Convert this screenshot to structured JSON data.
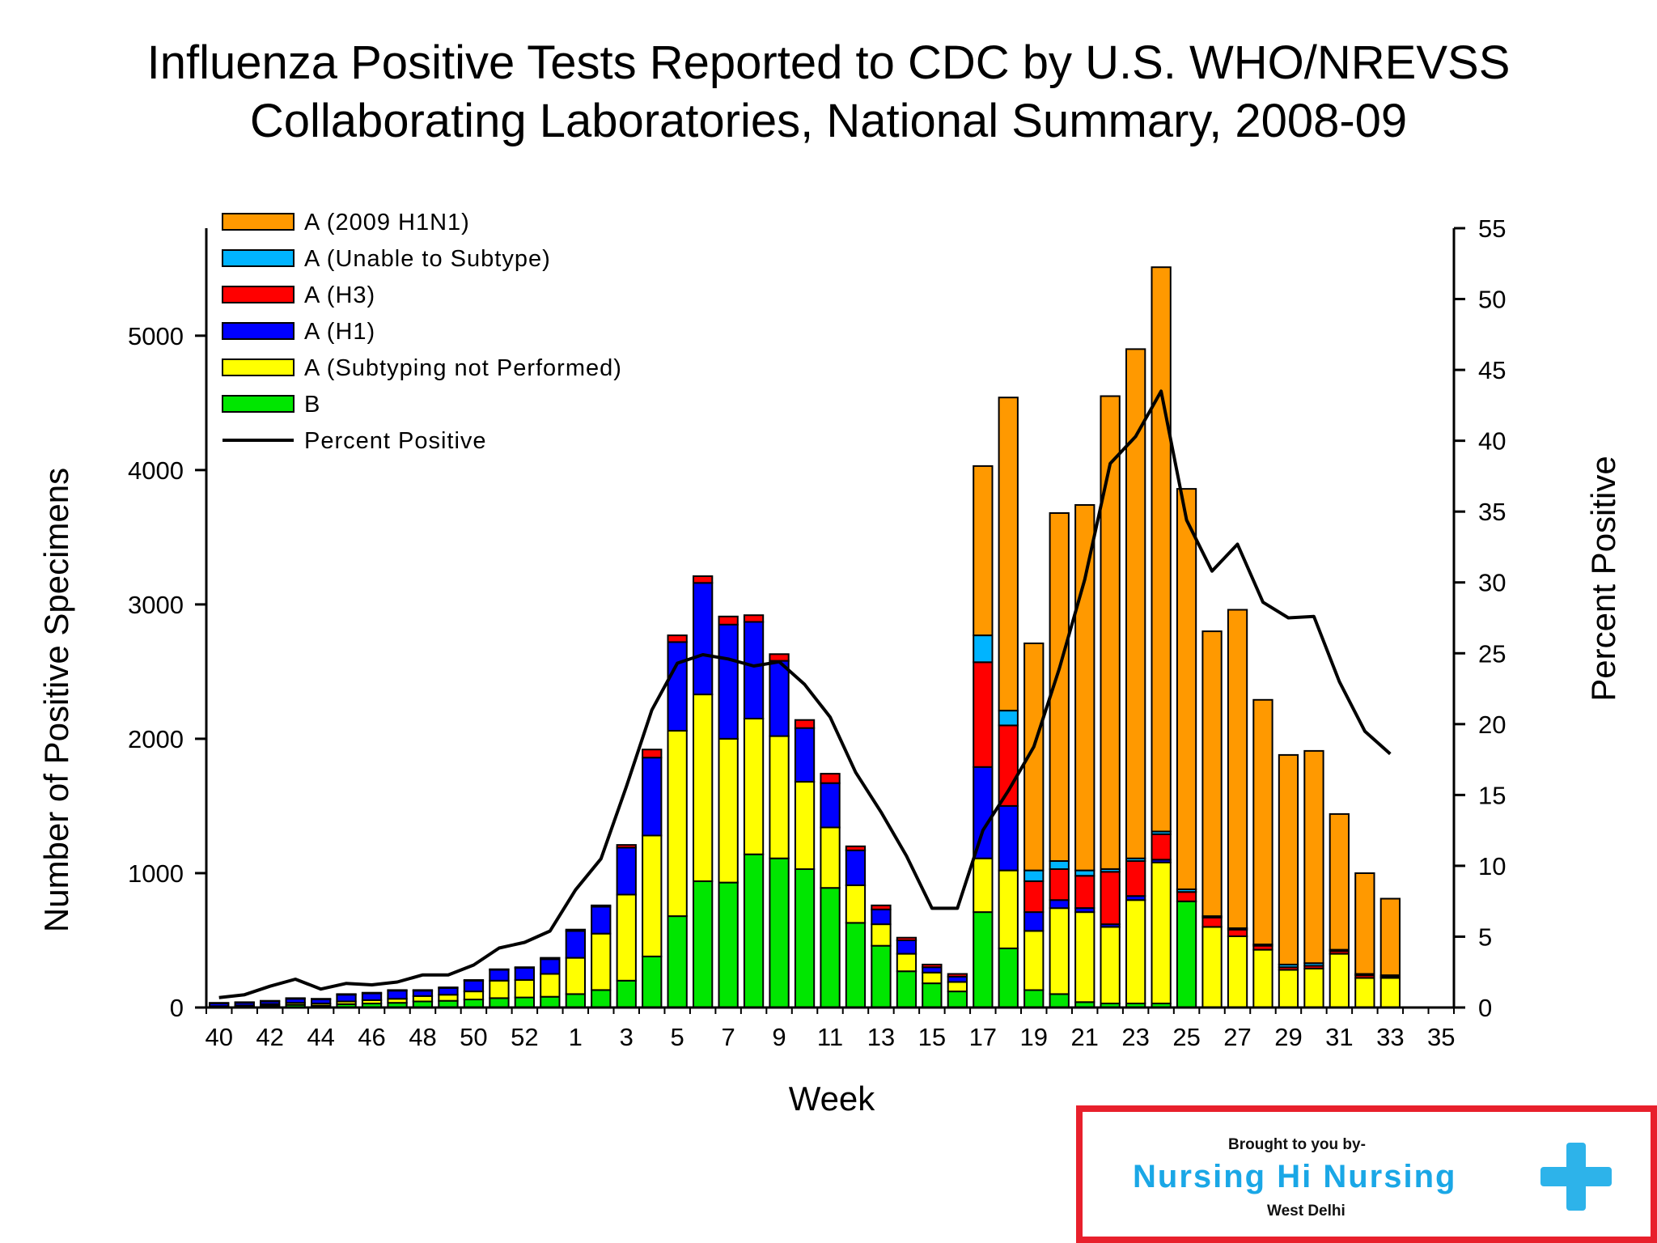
{
  "title_line1": "Influenza Positive Tests Reported to CDC by U.S. WHO/NREVSS",
  "title_line2": "Collaborating Laboratories, National Summary, 2008-09",
  "chart_data": {
    "type": "bar",
    "stacked": true,
    "title": "Influenza Positive Tests Reported to CDC by U.S. WHO/NREVSS Collaborating Laboratories, National Summary, 2008-09",
    "xlabel": "Week",
    "ylabel": "Number of Positive Specimens",
    "y2label": "Percent Positive",
    "ylim": [
      0,
      5800
    ],
    "y2lim": [
      0,
      55
    ],
    "yticks": [
      0,
      1000,
      2000,
      3000,
      4000,
      5000
    ],
    "y2ticks": [
      0,
      5,
      10,
      15,
      20,
      25,
      30,
      35,
      40,
      45,
      50,
      55
    ],
    "categories": [
      "40",
      "41",
      "42",
      "43",
      "44",
      "45",
      "46",
      "47",
      "48",
      "49",
      "50",
      "51",
      "52",
      "53",
      "1",
      "2",
      "3",
      "4",
      "5",
      "6",
      "7",
      "8",
      "9",
      "10",
      "11",
      "12",
      "13",
      "14",
      "15",
      "16",
      "17",
      "18",
      "19",
      "20",
      "21",
      "22",
      "23",
      "24",
      "25",
      "26",
      "27",
      "28",
      "29",
      "30",
      "31",
      "32",
      "33",
      "34",
      "35"
    ],
    "tick_labels": [
      "40",
      "42",
      "44",
      "46",
      "48",
      "50",
      "52",
      "1",
      "3",
      "5",
      "7",
      "9",
      "11",
      "13",
      "15",
      "17",
      "19",
      "21",
      "23",
      "25",
      "27",
      "29",
      "31",
      "33",
      "35"
    ],
    "series": [
      {
        "name": "B",
        "color": "#00e600",
        "values": [
          5,
          10,
          15,
          20,
          15,
          25,
          30,
          35,
          45,
          50,
          60,
          70,
          75,
          80,
          100,
          130,
          200,
          380,
          680,
          940,
          930,
          1140,
          1110,
          1030,
          890,
          630,
          460,
          270,
          180,
          120,
          710,
          440,
          130,
          100,
          40,
          30,
          30,
          30,
          790,
          0,
          0,
          0,
          0,
          0,
          0,
          0,
          0,
          0,
          0
        ]
      },
      {
        "name": "A (Subtyping not Performed)",
        "color": "#ffff00",
        "values": [
          5,
          5,
          10,
          15,
          15,
          20,
          25,
          30,
          40,
          45,
          60,
          130,
          130,
          170,
          270,
          420,
          640,
          900,
          1380,
          1390,
          1070,
          1010,
          910,
          650,
          450,
          280,
          160,
          130,
          80,
          70,
          400,
          580,
          440,
          640,
          670,
          570,
          770,
          1050,
          0,
          600,
          530,
          430,
          280,
          290,
          400,
          220,
          220,
          0,
          0
        ]
      },
      {
        "name": "A (H1)",
        "color": "#0000ff",
        "values": [
          20,
          20,
          20,
          30,
          30,
          50,
          50,
          60,
          40,
          50,
          80,
          80,
          90,
          110,
          200,
          200,
          350,
          580,
          660,
          830,
          850,
          720,
          560,
          400,
          330,
          260,
          110,
          100,
          40,
          40,
          680,
          480,
          140,
          60,
          30,
          20,
          30,
          20,
          0,
          0,
          0,
          0,
          0,
          0,
          0,
          0,
          0,
          0,
          0
        ]
      },
      {
        "name": "A (H3)",
        "color": "#ff0000",
        "values": [
          5,
          5,
          5,
          5,
          5,
          5,
          5,
          5,
          5,
          5,
          5,
          5,
          5,
          10,
          10,
          10,
          20,
          60,
          50,
          50,
          60,
          50,
          50,
          60,
          70,
          30,
          30,
          20,
          20,
          20,
          780,
          600,
          230,
          230,
          240,
          390,
          260,
          190,
          70,
          70,
          50,
          30,
          20,
          20,
          20,
          20,
          10,
          0,
          0
        ]
      },
      {
        "name": "A (Unable to Subtype)",
        "color": "#00b4ff",
        "values": [
          0,
          0,
          0,
          0,
          0,
          0,
          0,
          0,
          0,
          0,
          0,
          0,
          0,
          0,
          0,
          0,
          0,
          0,
          0,
          0,
          0,
          0,
          0,
          0,
          0,
          0,
          0,
          0,
          0,
          0,
          200,
          110,
          80,
          60,
          40,
          20,
          20,
          20,
          20,
          10,
          10,
          10,
          20,
          20,
          10,
          10,
          10,
          0,
          0
        ]
      },
      {
        "name": "A (2009 H1N1)",
        "color": "#ff9900",
        "values": [
          0,
          0,
          0,
          0,
          0,
          0,
          0,
          0,
          0,
          0,
          0,
          0,
          0,
          0,
          0,
          0,
          0,
          0,
          0,
          0,
          0,
          0,
          0,
          0,
          0,
          0,
          0,
          0,
          0,
          0,
          1260,
          2330,
          1690,
          2590,
          2720,
          3520,
          3790,
          4200,
          2980,
          2120,
          2370,
          1820,
          1560,
          1580,
          1010,
          750,
          570,
          0,
          0
        ]
      }
    ],
    "percent_positive": {
      "name": "Percent Positive",
      "color": "#000000",
      "values": [
        0.7,
        0.9,
        1.5,
        2,
        1.3,
        1.7,
        1.6,
        1.8,
        2.3,
        2.3,
        3,
        4.2,
        4.6,
        5.4,
        8.3,
        10.5,
        15.6,
        21,
        24.3,
        24.9,
        24.6,
        24.1,
        24.4,
        22.8,
        20.5,
        16.6,
        13.8,
        10.7,
        7,
        7,
        12.5,
        15.3,
        18.4,
        23.9,
        30.2,
        38.4,
        40.3,
        43.5,
        34.4,
        30.8,
        32.7,
        28.6,
        27.5,
        27.6,
        23,
        19.5,
        17.9,
        null,
        null
      ]
    },
    "legend": [
      "A (2009 H1N1)",
      "A (Unable to Subtype)",
      "A (H3)",
      "A (H1)",
      "A (Subtyping not Performed)",
      "B",
      "Percent Positive"
    ],
    "legend_position": "top-left"
  },
  "promo": {
    "by": "Brought to you by-",
    "brand": "Nursing Hi Nursing",
    "location": "West Delhi"
  }
}
